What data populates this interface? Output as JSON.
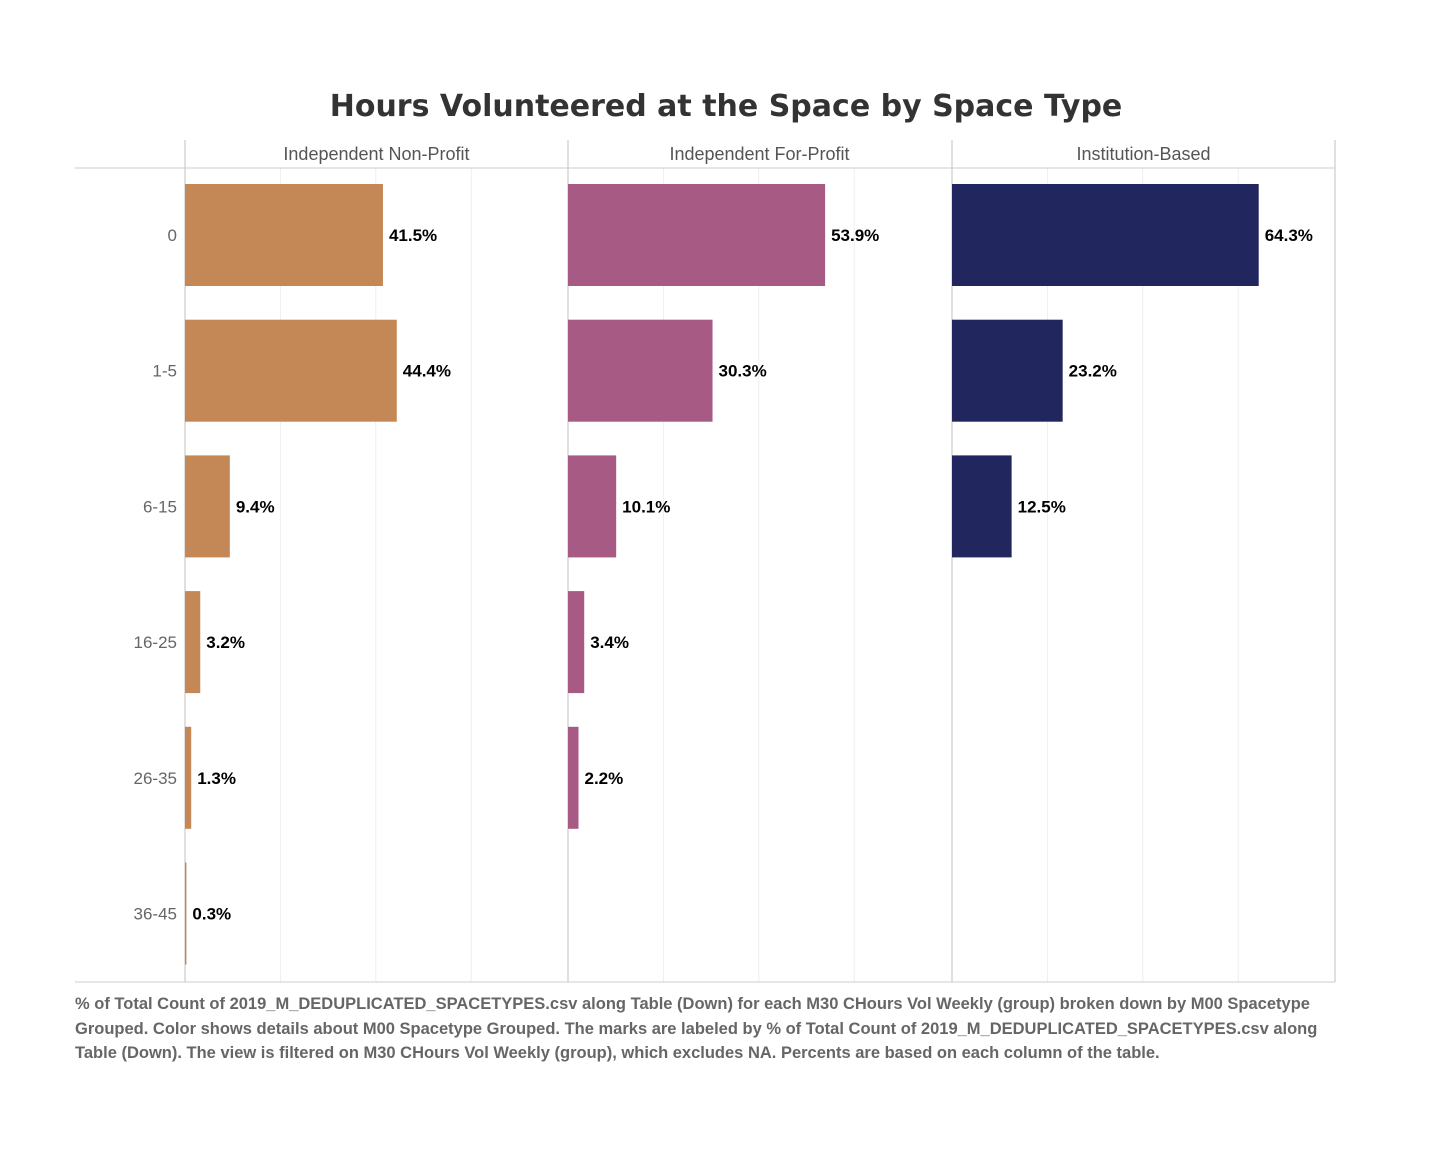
{
  "chart_data": {
    "type": "bar",
    "orientation": "horizontal",
    "title": "Hours Volunteered at the Space by Space Type",
    "categories": [
      "0",
      "1-5",
      "6-15",
      "16-25",
      "26-35",
      "36-45"
    ],
    "panels": [
      {
        "name": "Independent Non-Profit",
        "color": "#C38856",
        "values": [
          41.5,
          44.4,
          9.4,
          3.2,
          1.3,
          0.3
        ],
        "labels": [
          "41.5%",
          "44.4%",
          "9.4%",
          "3.2%",
          "1.3%",
          "0.3%"
        ]
      },
      {
        "name": "Independent For-Profit",
        "color": "#A65A84",
        "values": [
          53.9,
          30.3,
          10.1,
          3.4,
          2.2,
          null
        ],
        "labels": [
          "53.9%",
          "30.3%",
          "10.1%",
          "3.4%",
          "2.2%",
          null
        ]
      },
      {
        "name": "Institution-Based",
        "color": "#22265E",
        "values": [
          64.3,
          23.2,
          12.5,
          null,
          null,
          null
        ],
        "labels": [
          "64.3%",
          "23.2%",
          "12.5%",
          null,
          null,
          null
        ]
      }
    ],
    "xlim": [
      0,
      80
    ],
    "grid": true,
    "legend": "none",
    "caption": "% of Total Count of 2019_M_DEDUPLICATED_SPACETYPES.csv along Table (Down) for each M30 CHours Vol Weekly (group) broken down by M00 Spacetype Grouped.  Color shows details about M00 Spacetype Grouped.  The marks are labeled by % of Total Count of 2019_M_DEDUPLICATED_SPACETYPES.csv along Table (Down). The view is filtered on M30 CHours Vol Weekly (group), which excludes NA. Percents are based on each column of the table."
  }
}
